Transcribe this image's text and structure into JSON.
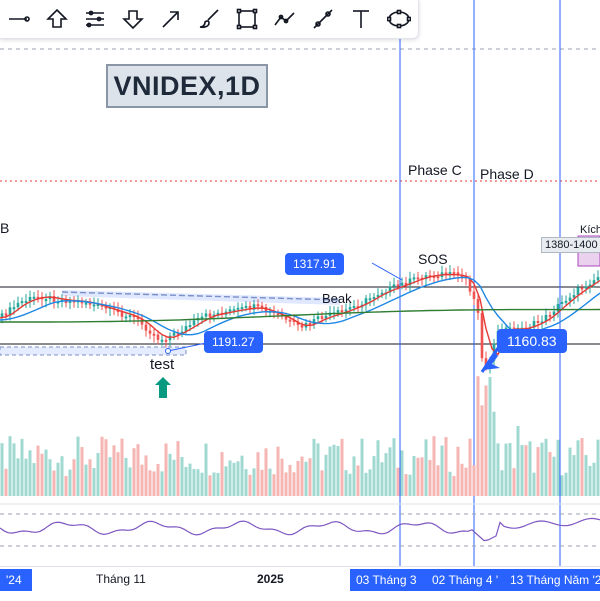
{
  "toolbar": {
    "tools": [
      {
        "icon": "line-tool-icon"
      },
      {
        "icon": "arrow-up-icon"
      },
      {
        "icon": "multi-point-line-icon"
      },
      {
        "icon": "arrow-down-icon"
      },
      {
        "icon": "arrow-icon"
      },
      {
        "icon": "brush-icon"
      },
      {
        "icon": "rectangle-icon"
      },
      {
        "icon": "path-icon"
      },
      {
        "icon": "ruler-icon"
      },
      {
        "icon": "text-icon"
      },
      {
        "icon": "ellipse-icon"
      }
    ]
  },
  "title": "VNIDEX,1D",
  "annotations": {
    "phase_c": "Phase C",
    "phase_d": "Phase D",
    "b": "B",
    "sos": "SOS",
    "beak": "Beak",
    "test": "test",
    "kich": "Kích",
    "range": "1380-1400"
  },
  "callouts": {
    "c1317": "1317.91",
    "c1191": "1191.27",
    "c1160": "1160.83"
  },
  "xaxis": {
    "left_partial": "'24",
    "thang11": "Tháng 11",
    "y2025": "2025",
    "h1": "03 Tháng 3",
    "h2": "02 Tháng 4 '",
    "h3": "13 Tháng Năm '2"
  },
  "colors": {
    "up": "#26a69a",
    "down": "#ef5350",
    "accent": "#2962ff",
    "ma_fast": "#e53935",
    "ma_mid": "#1e88e5",
    "ma_slow": "#2e7d32",
    "rsi": "#7e57c2"
  }
}
